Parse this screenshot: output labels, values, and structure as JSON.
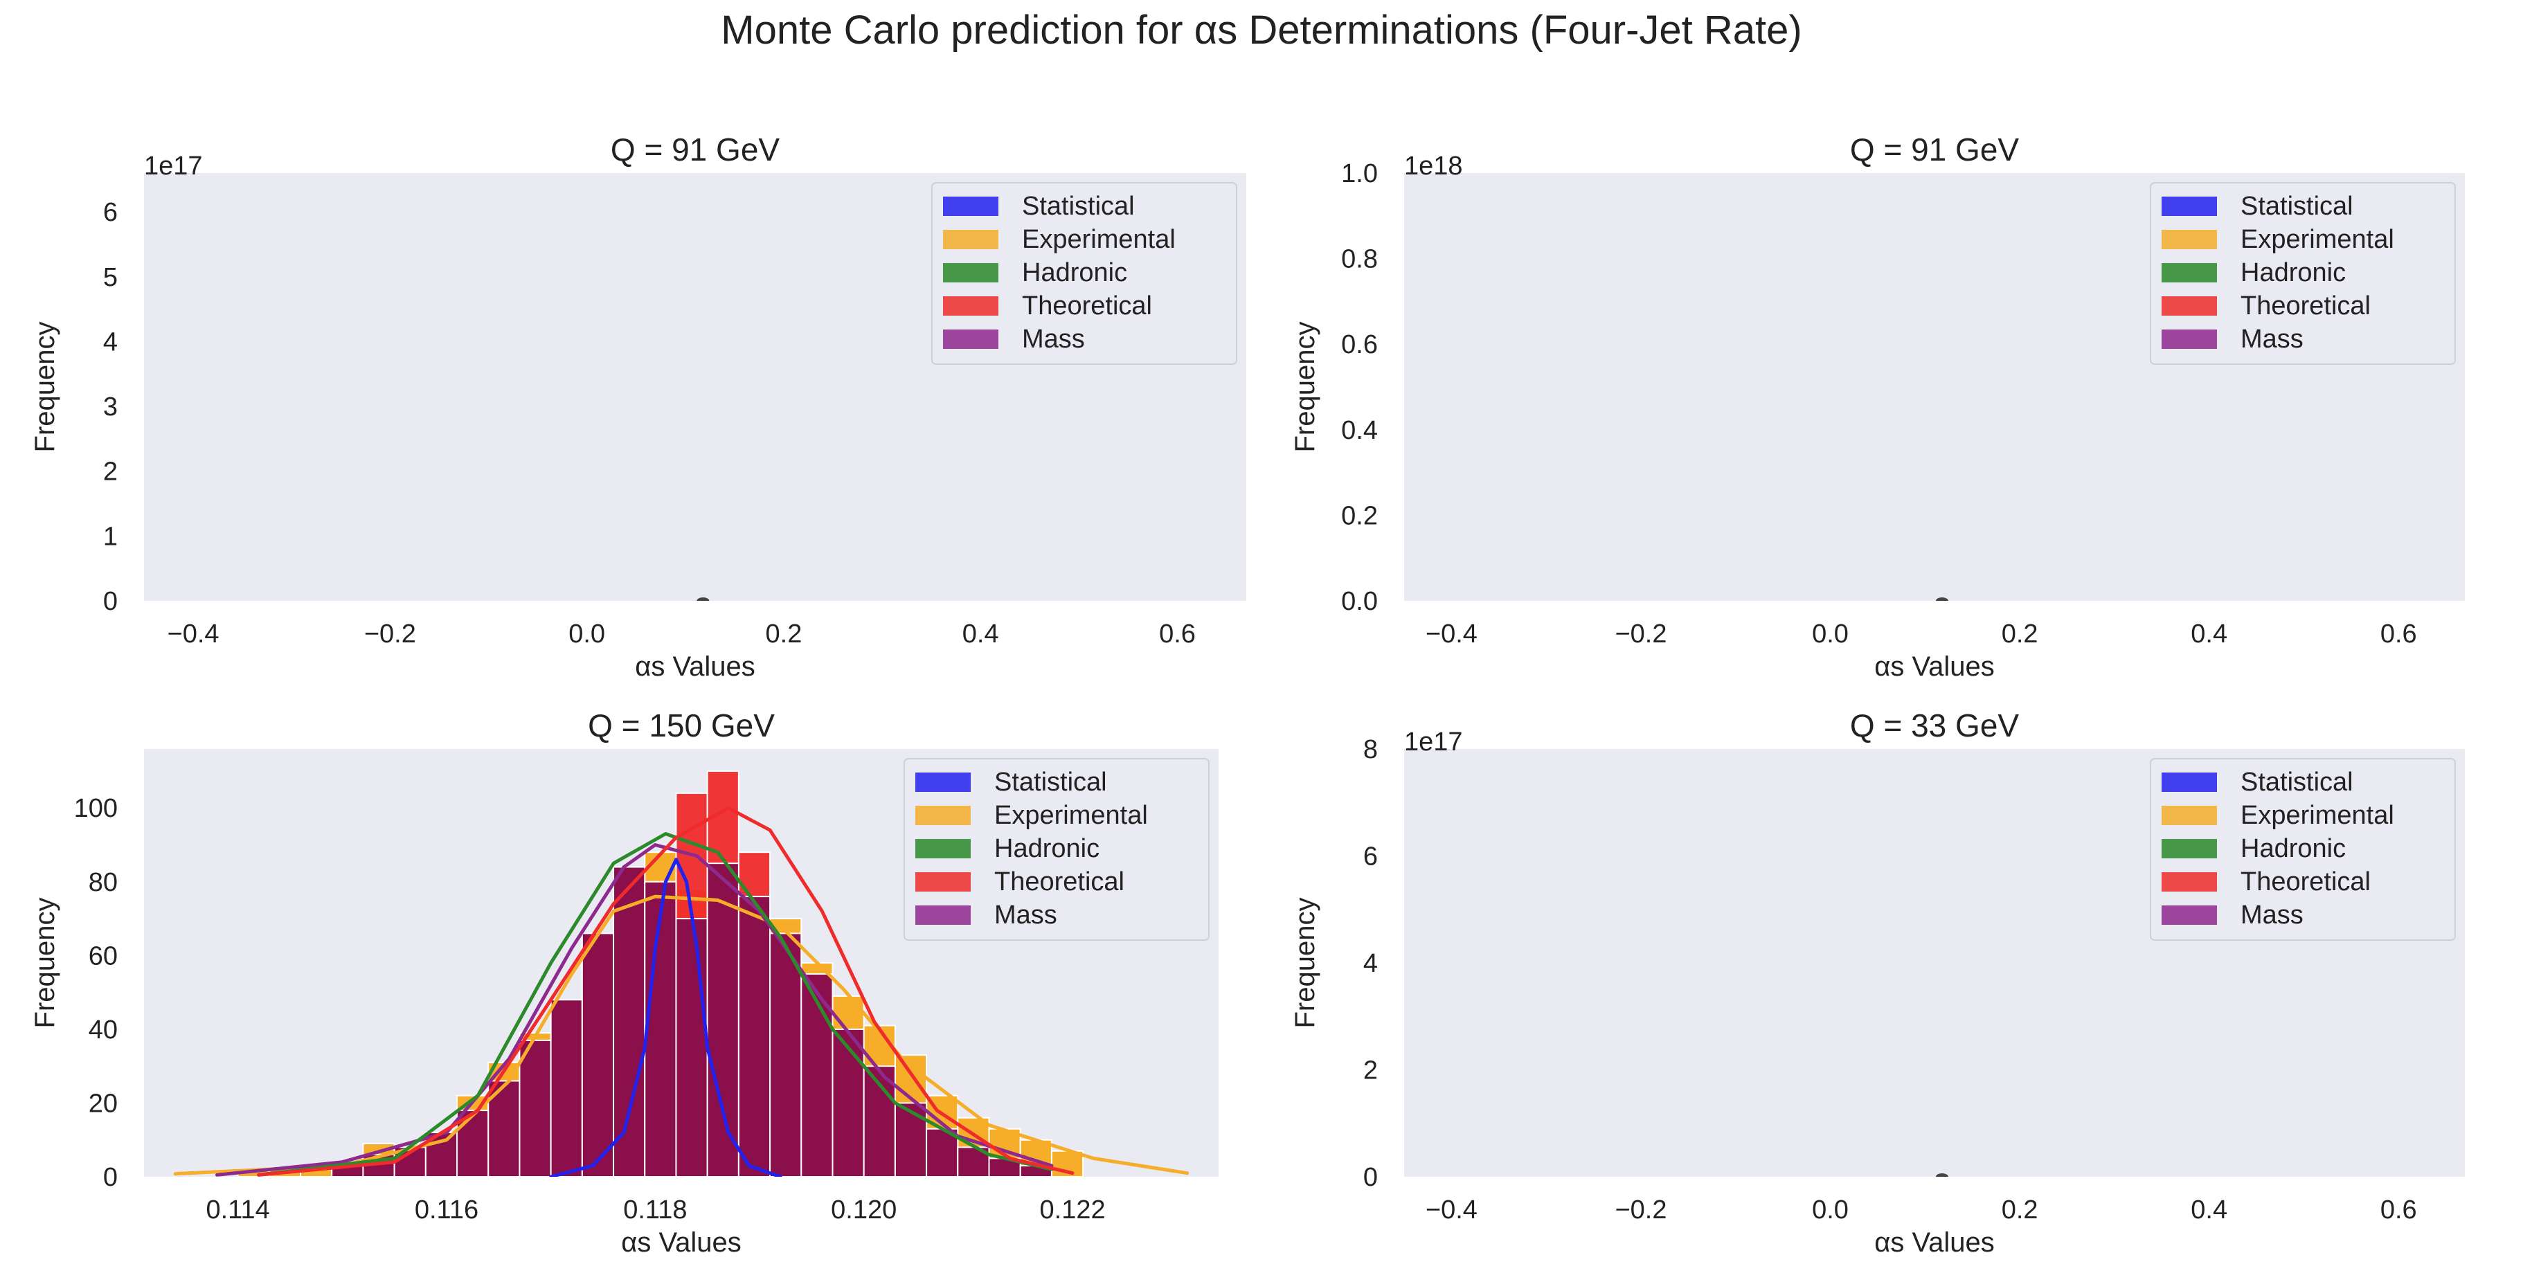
{
  "figure": {
    "title": "Monte Carlo prediction for αs Determinations (Four-Jet Rate)"
  },
  "colors": {
    "background": "#eaeaf2",
    "Statistical": "#2222ee",
    "Experimental": "#f5ad2a",
    "Hadronic": "#2c8a2c",
    "Theoretical": "#f02b2b",
    "Mass": "#8e2a8e",
    "overlap": "#8a0f4a"
  },
  "chart_data": [
    {
      "type": "histogram",
      "title": "Q = 91 GeV",
      "xlabel": "αs Values",
      "ylabel": "Frequency",
      "offset_text": "1e17",
      "xlim": [
        -0.45,
        0.67
      ],
      "ylim": [
        0,
        6.6
      ],
      "xticks": [
        -0.4,
        -0.2,
        0.0,
        0.2,
        0.4,
        0.6
      ],
      "xtick_labels": [
        "−0.4",
        "−0.2",
        "0.0",
        "0.2",
        "0.4",
        "0.6"
      ],
      "yticks": [
        0,
        1,
        2,
        3,
        4,
        5,
        6
      ],
      "ytick_labels": [
        "0",
        "1",
        "2",
        "3",
        "4",
        "5",
        "6"
      ],
      "legend": [
        "Statistical",
        "Experimental",
        "Hadronic",
        "Theoretical",
        "Mass"
      ],
      "legend_position": "top-right",
      "marker_x": 0.118,
      "grid": false
    },
    {
      "type": "histogram",
      "title": "Q = 91 GeV",
      "xlabel": "αs Values",
      "ylabel": "Frequency",
      "offset_text": "1e18",
      "xlim": [
        -0.45,
        0.67
      ],
      "ylim": [
        0,
        1.0
      ],
      "xticks": [
        -0.4,
        -0.2,
        0.0,
        0.2,
        0.4,
        0.6
      ],
      "xtick_labels": [
        "−0.4",
        "−0.2",
        "0.0",
        "0.2",
        "0.4",
        "0.6"
      ],
      "yticks": [
        0.0,
        0.2,
        0.4,
        0.6,
        0.8,
        1.0
      ],
      "ytick_labels": [
        "0.0",
        "0.2",
        "0.4",
        "0.6",
        "0.8",
        "1.0"
      ],
      "legend": [
        "Statistical",
        "Experimental",
        "Hadronic",
        "Theoretical",
        "Mass"
      ],
      "legend_position": "top-right",
      "marker_x": 0.118,
      "grid": false
    },
    {
      "type": "histogram",
      "title": "Q = 150 GeV",
      "xlabel": "αs Values",
      "ylabel": "Frequency",
      "xlim": [
        0.1131,
        0.1234
      ],
      "ylim": [
        0,
        116
      ],
      "xticks": [
        0.114,
        0.116,
        0.118,
        0.12,
        0.122
      ],
      "xtick_labels": [
        "0.114",
        "0.116",
        "0.118",
        "0.120",
        "0.122"
      ],
      "yticks": [
        0,
        20,
        40,
        60,
        80,
        100
      ],
      "ytick_labels": [
        "0",
        "20",
        "40",
        "60",
        "80",
        "100"
      ],
      "legend": [
        "Statistical",
        "Experimental",
        "Hadronic",
        "Theoretical",
        "Mass"
      ],
      "legend_position": "top-right",
      "grid": false,
      "series": [
        {
          "name": "Experimental",
          "bins": [
            [
              0.114,
              0.1143,
              2
            ],
            [
              0.1143,
              0.1146,
              2
            ],
            [
              0.1146,
              0.1149,
              2
            ],
            [
              0.1149,
              0.1152,
              4
            ],
            [
              0.1152,
              0.1155,
              9
            ],
            [
              0.1155,
              0.1158,
              6
            ],
            [
              0.1158,
              0.1161,
              12
            ],
            [
              0.1161,
              0.1164,
              22
            ],
            [
              0.1164,
              0.1167,
              31
            ],
            [
              0.1167,
              0.117,
              39
            ],
            [
              0.117,
              0.1173,
              45
            ],
            [
              0.1173,
              0.1176,
              63
            ],
            [
              0.1176,
              0.1179,
              80
            ],
            [
              0.1179,
              0.1182,
              88
            ],
            [
              0.1182,
              0.1185,
              78
            ],
            [
              0.1185,
              0.1188,
              77
            ],
            [
              0.1188,
              0.1191,
              74
            ],
            [
              0.1191,
              0.1194,
              70
            ],
            [
              0.1194,
              0.1197,
              58
            ],
            [
              0.1197,
              0.12,
              49
            ],
            [
              0.12,
              0.1203,
              41
            ],
            [
              0.1203,
              0.1206,
              33
            ],
            [
              0.1206,
              0.1209,
              22
            ],
            [
              0.1209,
              0.1212,
              16
            ],
            [
              0.1212,
              0.1215,
              13
            ],
            [
              0.1215,
              0.1218,
              10
            ],
            [
              0.1218,
              0.1221,
              7
            ]
          ],
          "kde": [
            [
              0.1134,
              0.8
            ],
            [
              0.115,
              3
            ],
            [
              0.116,
              10
            ],
            [
              0.1166,
              26
            ],
            [
              0.1172,
              55
            ],
            [
              0.1176,
              72
            ],
            [
              0.118,
              76
            ],
            [
              0.1186,
              75
            ],
            [
              0.1192,
              68
            ],
            [
              0.1198,
              51
            ],
            [
              0.1204,
              31
            ],
            [
              0.1212,
              14
            ],
            [
              0.1222,
              5
            ],
            [
              0.1231,
              1
            ]
          ]
        },
        {
          "name": "Hadronic",
          "kde": [
            [
              0.1142,
              0.5
            ],
            [
              0.1155,
              5
            ],
            [
              0.1163,
              22
            ],
            [
              0.117,
              58
            ],
            [
              0.1176,
              85
            ],
            [
              0.1181,
              93
            ],
            [
              0.1186,
              88
            ],
            [
              0.1192,
              65
            ],
            [
              0.1197,
              40
            ],
            [
              0.1203,
              20
            ],
            [
              0.1212,
              6
            ],
            [
              0.1218,
              2
            ]
          ]
        },
        {
          "name": "Theoretical",
          "bins": [
            [
              0.1179,
              0.1182,
              80
            ],
            [
              0.1182,
              0.1185,
              104
            ],
            [
              0.1185,
              0.1188,
              110
            ],
            [
              0.1188,
              0.1191,
              88
            ]
          ],
          "kde": [
            [
              0.1142,
              0.5
            ],
            [
              0.1155,
              4
            ],
            [
              0.1163,
              18
            ],
            [
              0.117,
              48
            ],
            [
              0.1176,
              74
            ],
            [
              0.1182,
              92
            ],
            [
              0.1187,
              100
            ],
            [
              0.1191,
              94
            ],
            [
              0.1196,
              72
            ],
            [
              0.1201,
              42
            ],
            [
              0.1207,
              18
            ],
            [
              0.1214,
              5
            ],
            [
              0.122,
              1
            ]
          ]
        },
        {
          "name": "Mass",
          "bins": [
            [
              0.1149,
              0.1152,
              3
            ],
            [
              0.1152,
              0.1155,
              6
            ],
            [
              0.1155,
              0.1158,
              8
            ],
            [
              0.1158,
              0.1161,
              12
            ],
            [
              0.1161,
              0.1164,
              18
            ],
            [
              0.1164,
              0.1167,
              26
            ],
            [
              0.1167,
              0.117,
              37
            ],
            [
              0.117,
              0.1173,
              48
            ],
            [
              0.1173,
              0.1176,
              66
            ],
            [
              0.1176,
              0.1179,
              84
            ],
            [
              0.1179,
              0.1182,
              80
            ],
            [
              0.1182,
              0.1185,
              70
            ],
            [
              0.1185,
              0.1188,
              85
            ],
            [
              0.1188,
              0.1191,
              76
            ],
            [
              0.1191,
              0.1194,
              66
            ],
            [
              0.1194,
              0.1197,
              55
            ],
            [
              0.1197,
              0.12,
              40
            ],
            [
              0.12,
              0.1203,
              30
            ],
            [
              0.1203,
              0.1206,
              20
            ],
            [
              0.1206,
              0.1209,
              13
            ],
            [
              0.1209,
              0.1212,
              8
            ],
            [
              0.1212,
              0.1215,
              5
            ],
            [
              0.1215,
              0.1218,
              3
            ]
          ],
          "kde": [
            [
              0.1138,
              0.5
            ],
            [
              0.115,
              4
            ],
            [
              0.116,
              12
            ],
            [
              0.1166,
              32
            ],
            [
              0.1172,
              62
            ],
            [
              0.1177,
              84
            ],
            [
              0.118,
              90
            ],
            [
              0.1184,
              87
            ],
            [
              0.119,
              72
            ],
            [
              0.1196,
              48
            ],
            [
              0.1202,
              27
            ],
            [
              0.1209,
              11
            ],
            [
              0.1218,
              3
            ]
          ]
        },
        {
          "name": "Statistical",
          "kde": [
            [
              0.117,
              0
            ],
            [
              0.1174,
              3
            ],
            [
              0.1177,
              12
            ],
            [
              0.1179,
              35
            ],
            [
              0.118,
              62
            ],
            [
              0.1181,
              80
            ],
            [
              0.1182,
              86
            ],
            [
              0.1183,
              80
            ],
            [
              0.1184,
              62
            ],
            [
              0.1185,
              35
            ],
            [
              0.1187,
              12
            ],
            [
              0.1189,
              3
            ],
            [
              0.1192,
              0
            ]
          ]
        }
      ]
    },
    {
      "type": "histogram",
      "title": "Q = 33 GeV",
      "xlabel": "αs Values",
      "ylabel": "Frequency",
      "offset_text": "1e17",
      "xlim": [
        -0.45,
        0.67
      ],
      "ylim": [
        0,
        8
      ],
      "xticks": [
        -0.4,
        -0.2,
        0.0,
        0.2,
        0.4,
        0.6
      ],
      "xtick_labels": [
        "−0.4",
        "−0.2",
        "0.0",
        "0.2",
        "0.4",
        "0.6"
      ],
      "yticks": [
        0,
        2,
        4,
        6,
        8
      ],
      "ytick_labels": [
        "0",
        "2",
        "4",
        "6",
        "8"
      ],
      "legend": [
        "Statistical",
        "Experimental",
        "Hadronic",
        "Theoretical",
        "Mass"
      ],
      "legend_position": "top-right",
      "marker_x": 0.118,
      "grid": false
    }
  ]
}
